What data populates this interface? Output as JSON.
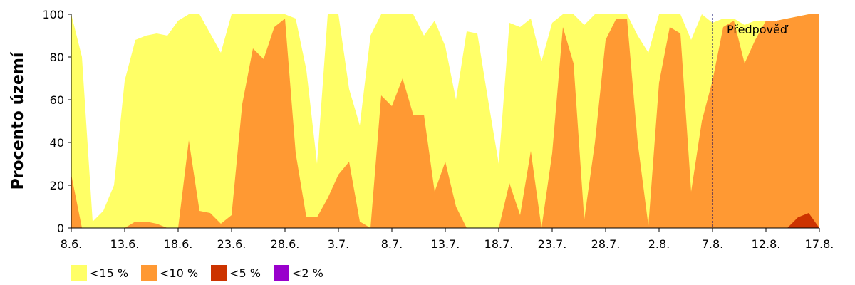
{
  "chart_data": {
    "type": "area",
    "ylabel": "Procento území",
    "ylim": [
      0,
      100
    ],
    "yticks": [
      0,
      20,
      40,
      60,
      80,
      100
    ],
    "x_tick_labels": [
      "8.6.",
      "13.6.",
      "18.6.",
      "23.6.",
      "28.6.",
      "3.7.",
      "8.7.",
      "13.7.",
      "18.7.",
      "23.7.",
      "28.7.",
      "2.8.",
      "7.8.",
      "12.8.",
      "17.8."
    ],
    "annotation": {
      "text": "Předpověď",
      "at_day": 60
    },
    "legend": [
      {
        "label": "<15 %",
        "color": "#ffff66"
      },
      {
        "label": "<10 %",
        "color": "#ff9933"
      },
      {
        "label": "<5 %",
        "color": "#cc3300"
      },
      {
        "label": "<2 %",
        "color": "#9900cc"
      }
    ],
    "days": [
      "8.6.",
      "9.6.",
      "10.6.",
      "11.6.",
      "12.6.",
      "13.6.",
      "14.6.",
      "15.6.",
      "16.6.",
      "17.6.",
      "18.6.",
      "19.6.",
      "20.6.",
      "21.6.",
      "22.6.",
      "23.6.",
      "24.6.",
      "25.6.",
      "26.6.",
      "27.6.",
      "28.6.",
      "29.6.",
      "30.6.",
      "1.7.",
      "2.7.",
      "3.7.",
      "4.7.",
      "5.7.",
      "6.7.",
      "7.7.",
      "8.7.",
      "9.7.",
      "10.7.",
      "11.7.",
      "12.7.",
      "13.7.",
      "14.7.",
      "15.7.",
      "16.7.",
      "17.7.",
      "18.7.",
      "19.7.",
      "20.7.",
      "21.7.",
      "22.7.",
      "23.7.",
      "24.7.",
      "25.7.",
      "26.7.",
      "27.7.",
      "28.7.",
      "29.7.",
      "30.7.",
      "31.7.",
      "1.8.",
      "2.8.",
      "3.8.",
      "4.8.",
      "5.8.",
      "6.8.",
      "7.8.",
      "8.8.",
      "9.8.",
      "10.8.",
      "11.8.",
      "12.8.",
      "13.8.",
      "14.8.",
      "15.8.",
      "16.8.",
      "17.8."
    ],
    "series": [
      {
        "name": "<15 %",
        "color": "#ffff66",
        "values": [
          100,
          80,
          3,
          8,
          20,
          69,
          88,
          90,
          91,
          90,
          97,
          100,
          100,
          91,
          82,
          100,
          100,
          100,
          100,
          100,
          100,
          98,
          74,
          30,
          100,
          100,
          65,
          48,
          90,
          100,
          100,
          100,
          100,
          90,
          97,
          85,
          60,
          92,
          91,
          60,
          30,
          96,
          94,
          98,
          78,
          96,
          100,
          100,
          95,
          100,
          100,
          100,
          100,
          90,
          82,
          100,
          100,
          100,
          88,
          100,
          96,
          98,
          98,
          95,
          97,
          97,
          97,
          98,
          99,
          100,
          90
        ]
      },
      {
        "name": "<10 %",
        "color": "#ff9933",
        "values": [
          25,
          0,
          0,
          0,
          0,
          0,
          3,
          3,
          2,
          0,
          0,
          41,
          8,
          7,
          2,
          6,
          58,
          84,
          79,
          94,
          98,
          35,
          5,
          5,
          14,
          25,
          31,
          3,
          0,
          62,
          57,
          70,
          53,
          53,
          17,
          31,
          10,
          0,
          0,
          0,
          0,
          21,
          6,
          36,
          0,
          35,
          94,
          77,
          4,
          40,
          88,
          98,
          98,
          40,
          1,
          68,
          94,
          91,
          17,
          50,
          69,
          94,
          97,
          77,
          88,
          97,
          97,
          98,
          99,
          100,
          100
        ]
      },
      {
        "name": "<5 %",
        "color": "#cc3300",
        "values": [
          0,
          0,
          0,
          0,
          0,
          0,
          0,
          0,
          0,
          0,
          0,
          0,
          0,
          0,
          0,
          0,
          0,
          0,
          0,
          0,
          0,
          0,
          0,
          0,
          0,
          0,
          0,
          0,
          0,
          0,
          0,
          0,
          0,
          0,
          0,
          0,
          0,
          0,
          0,
          0,
          0,
          0,
          0,
          0,
          0,
          0,
          0,
          0,
          0,
          0,
          0,
          0,
          0,
          0,
          0,
          0,
          0,
          0,
          0,
          0,
          0,
          0,
          0,
          0,
          0,
          0,
          0,
          0,
          5,
          7,
          0
        ]
      },
      {
        "name": "<2 %",
        "color": "#9900cc",
        "values": [
          0,
          0,
          0,
          0,
          0,
          0,
          0,
          0,
          0,
          0,
          0,
          0,
          0,
          0,
          0,
          0,
          0,
          0,
          0,
          0,
          0,
          0,
          0,
          0,
          0,
          0,
          0,
          0,
          0,
          0,
          0,
          0,
          0,
          0,
          0,
          0,
          0,
          0,
          0,
          0,
          0,
          0,
          0,
          0,
          0,
          0,
          0,
          0,
          0,
          0,
          0,
          0,
          0,
          0,
          0,
          0,
          0,
          0,
          0,
          0,
          0,
          0,
          0,
          0,
          0,
          0,
          0,
          0,
          0,
          0,
          0
        ]
      }
    ]
  }
}
